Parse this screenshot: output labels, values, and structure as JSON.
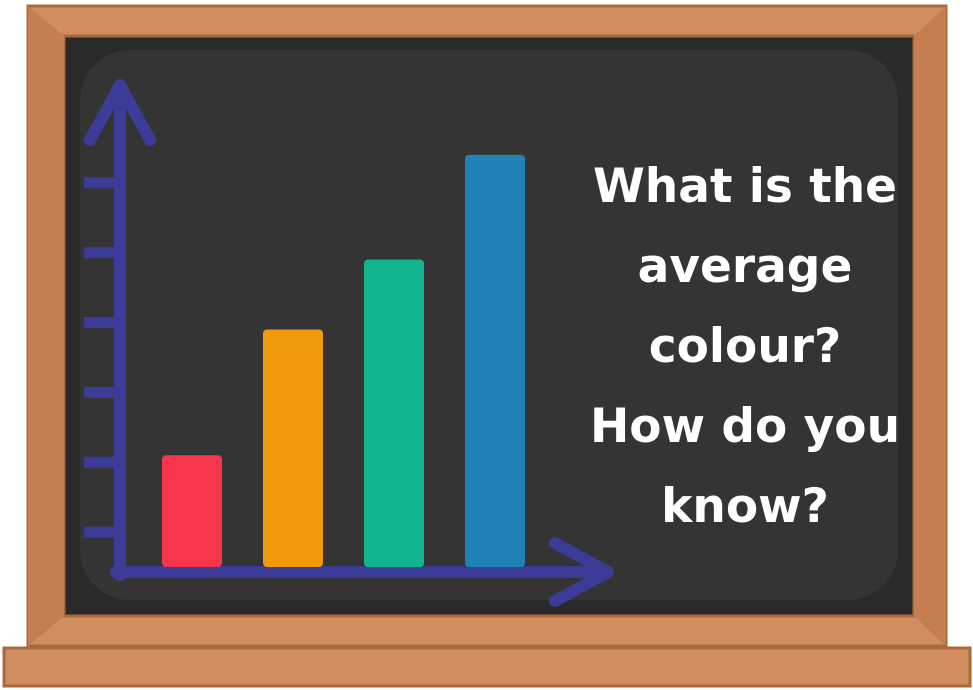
{
  "chart_data": {
    "type": "bar",
    "categories": [
      null,
      null,
      null,
      null
    ],
    "values": [
      1.6,
      3.4,
      4.4,
      5.9
    ],
    "colors": [
      "#f7364e",
      "#f2990c",
      "#12b58f",
      "#1f83b8"
    ],
    "ylim": [
      0,
      6.9
    ],
    "yticks": [
      0.5,
      1.5,
      2.5,
      3.5,
      4.5,
      5.5
    ],
    "annotation_lines": [
      "What is the",
      "average",
      "colour?",
      "How do you",
      "know?"
    ]
  }
}
